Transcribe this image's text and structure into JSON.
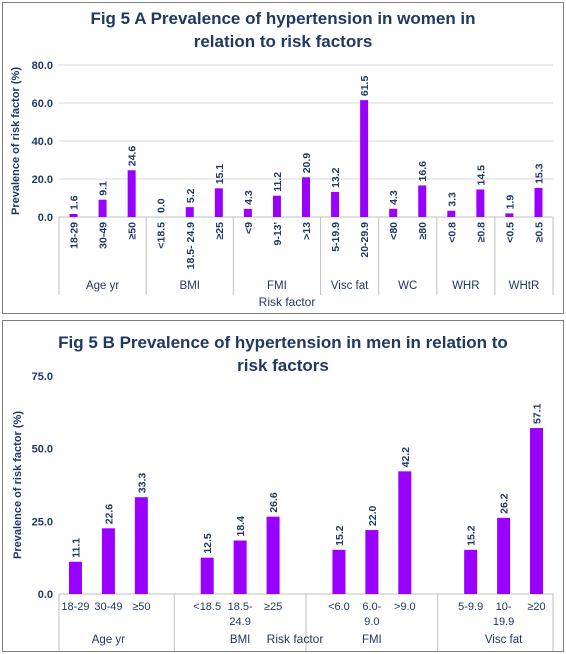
{
  "chart_data": [
    {
      "type": "bar",
      "title": "Fig 5 A Prevalence of hypertension in women in relation to risk factors",
      "ylabel": "Prevalence of risk factor (%)",
      "xlabel": "Risk factor",
      "ylim": [
        0,
        80
      ],
      "yticks": [
        "0.0",
        "20.0",
        "40.0",
        "60.0",
        "80.0"
      ],
      "ytick_values": [
        0,
        20,
        40,
        60,
        80
      ],
      "gridlines": true,
      "bar_color": "#9900ff",
      "groups": [
        {
          "label": "Age yr",
          "categories": [
            "18-29",
            "30-49",
            "≥50"
          ],
          "values": [
            1.6,
            9.1,
            24.6
          ],
          "value_labels": [
            "1.6",
            "9.1",
            "24.6"
          ]
        },
        {
          "label": "BMI",
          "categories": [
            "<18.5",
            "18.5- 24.9",
            "≥25"
          ],
          "values": [
            0.0,
            5.2,
            15.1
          ],
          "value_labels": [
            "0.0",
            "5.2",
            "15.1"
          ]
        },
        {
          "label": "FMI",
          "categories": [
            "<9",
            "9-13'",
            ">13"
          ],
          "values": [
            4.3,
            11.2,
            20.9
          ],
          "value_labels": [
            "4.3",
            "11.2",
            "20.9"
          ]
        },
        {
          "label": "Visc fat",
          "categories": [
            "5-19.9",
            "20-29.9"
          ],
          "values": [
            13.2,
            61.5
          ],
          "value_labels": [
            "13.2",
            "61.5"
          ]
        },
        {
          "label": "WC",
          "categories": [
            "<80",
            "≥80"
          ],
          "values": [
            4.3,
            16.6
          ],
          "value_labels": [
            "4.3",
            "16.6"
          ]
        },
        {
          "label": "WHR",
          "categories": [
            "<0.8",
            "≥0.8"
          ],
          "values": [
            3.3,
            14.5
          ],
          "value_labels": [
            "3.3",
            "14.5"
          ]
        },
        {
          "label": "WHtR",
          "categories": [
            "<0.5",
            "≥0.5"
          ],
          "values": [
            1.9,
            15.3
          ],
          "value_labels": [
            "1.9",
            "15.3"
          ]
        }
      ]
    },
    {
      "type": "bar",
      "title": "Fig 5 B Prevalence of hypertension in men in relation to risk factors",
      "ylabel": "Prevalence of risk factor (%)",
      "xlabel": "Risk factor",
      "ylim": [
        0,
        75
      ],
      "yticks": [
        "0.0",
        "25.0",
        "50.0",
        "75.0"
      ],
      "ytick_values": [
        0,
        25,
        50,
        75
      ],
      "gridlines": false,
      "bar_color": "#9900ff",
      "groups": [
        {
          "label": "Age yr",
          "categories": [
            "18-29",
            "30-49",
            "≥50"
          ],
          "values": [
            11.1,
            22.6,
            33.3
          ],
          "value_labels": [
            "11.1",
            "22.6",
            "33.3"
          ]
        },
        {
          "label": "BMI",
          "categories": [
            "<18.5",
            "18.5-\n24.9",
            "≥25"
          ],
          "values": [
            12.5,
            18.4,
            26.6
          ],
          "value_labels": [
            "12.5",
            "18.4",
            "26.6"
          ]
        },
        {
          "label": "FMI",
          "categories": [
            "<6.0",
            "6.0-\n9.0",
            ">9.0"
          ],
          "values": [
            15.2,
            22.0,
            42.2
          ],
          "value_labels": [
            "15.2",
            "22.0",
            "42.2"
          ]
        },
        {
          "label": "Visc fat",
          "categories": [
            "5-9.9",
            "10-\n19.9",
            "≥20"
          ],
          "values": [
            15.2,
            26.2,
            57.1
          ],
          "value_labels": [
            "15.2",
            "26.2",
            "57.1"
          ]
        }
      ]
    }
  ],
  "colors": {
    "title": "#1f3864",
    "text": "#1f3864",
    "bar": "#9900ff",
    "grid": "#d9d9d9",
    "border": "#7f7f7f"
  }
}
